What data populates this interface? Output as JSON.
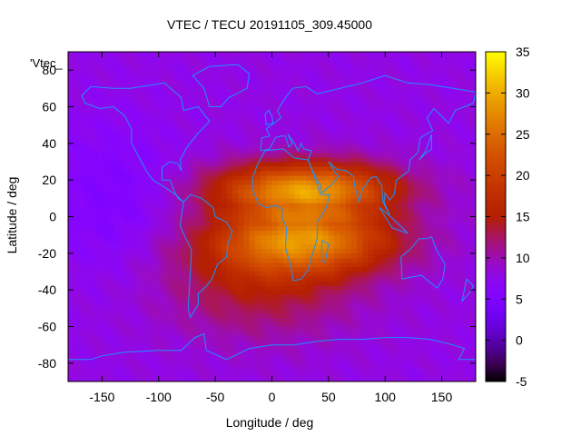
{
  "chart_data": {
    "type": "heatmap",
    "title": "VTEC / TECU 20191105_309.45000",
    "xlabel": "Longitude / deg",
    "ylabel": "Latitude / deg",
    "legend_key": "'Vtec_",
    "xlim": [
      -180,
      180
    ],
    "ylim": [
      -90,
      90
    ],
    "xticks": [
      "-150",
      "-100",
      "-50",
      "0",
      "50",
      "100",
      "150"
    ],
    "xtick_values": [
      -150,
      -100,
      -50,
      0,
      50,
      100,
      150
    ],
    "yticks": [
      "80",
      "60",
      "40",
      "20",
      "0",
      "-20",
      "-40",
      "-60",
      "-80"
    ],
    "ytick_values": [
      80,
      60,
      40,
      20,
      0,
      -20,
      -40,
      -60,
      -80
    ],
    "colorbar": {
      "range": [
        -5,
        35
      ],
      "ticks": [
        "35",
        "30",
        "25",
        "20",
        "15",
        "10",
        "5",
        "0",
        "-5"
      ],
      "tick_values": [
        35,
        30,
        25,
        20,
        15,
        10,
        5,
        0,
        -5
      ],
      "palette": "gnuplot-pm3d-rgbformulae-7-5-15"
    },
    "field_description": {
      "background_tecu": 8,
      "equatorial_peak_center_lon": 30,
      "equatorial_peak_center_lat": 8,
      "peak_tecu": 31,
      "pacific_min_tecu": 5,
      "polar_tecu": 7
    },
    "coastline_color": "#1e90ff"
  }
}
